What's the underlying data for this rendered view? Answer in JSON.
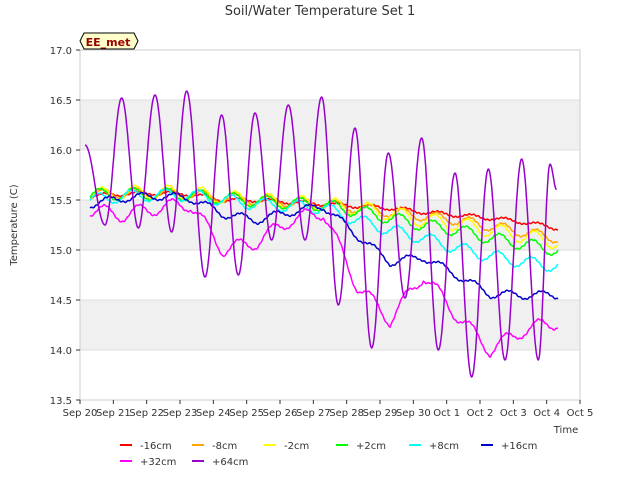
{
  "chart_data": {
    "type": "line",
    "title": "Soil/Water Temperature Set 1",
    "xlabel": "Time",
    "ylabel": "Temperature (C)",
    "badge": "EE_met",
    "xlim": [
      0,
      15
    ],
    "ylim": [
      13.5,
      17.0
    ],
    "x_ticks": [
      {
        "x": 0,
        "label": "Sep 20"
      },
      {
        "x": 1,
        "label": "Sep 21"
      },
      {
        "x": 2,
        "label": "Sep 22"
      },
      {
        "x": 3,
        "label": "Sep 23"
      },
      {
        "x": 4,
        "label": "Sep 24"
      },
      {
        "x": 5,
        "label": "Sep 25"
      },
      {
        "x": 6,
        "label": "Sep 26"
      },
      {
        "x": 7,
        "label": "Sep 27"
      },
      {
        "x": 8,
        "label": "Sep 28"
      },
      {
        "x": 9,
        "label": "Sep 29"
      },
      {
        "x": 10,
        "label": "Sep 30"
      },
      {
        "x": 11,
        "label": "Oct 1"
      },
      {
        "x": 12,
        "label": "Oct 2"
      },
      {
        "x": 13,
        "label": "Oct 3"
      },
      {
        "x": 14,
        "label": "Oct 4"
      },
      {
        "x": 15,
        "label": "Oct 5"
      }
    ],
    "y_ticks": [
      {
        "y": 13.5,
        "label": "13.5"
      },
      {
        "y": 14.0,
        "label": "14.0"
      },
      {
        "y": 14.5,
        "label": "14.5"
      },
      {
        "y": 15.0,
        "label": "15.0"
      },
      {
        "y": 15.5,
        "label": "15.5"
      },
      {
        "y": 16.0,
        "label": "16.0"
      },
      {
        "y": 16.5,
        "label": "16.5"
      },
      {
        "y": 17.0,
        "label": "17.0"
      }
    ],
    "grid": true,
    "legend_position": "bottom",
    "series": [
      {
        "name": "-16cm",
        "color": "#ff0000",
        "points": [
          [
            0.3,
            15.54
          ],
          [
            1.3,
            15.56
          ],
          [
            2.3,
            15.57
          ],
          [
            3.3,
            15.56
          ],
          [
            4.3,
            15.5
          ],
          [
            5.3,
            15.5
          ],
          [
            6.3,
            15.48
          ],
          [
            7.3,
            15.46
          ],
          [
            8.3,
            15.44
          ],
          [
            9.3,
            15.42
          ],
          [
            10.3,
            15.38
          ],
          [
            11.3,
            15.35
          ],
          [
            12.3,
            15.32
          ],
          [
            13.3,
            15.28
          ],
          [
            14.3,
            15.22
          ]
        ],
        "amp": 0.02,
        "phase": 0.5
      },
      {
        "name": "-8cm",
        "color": "#ffa500",
        "points": [
          [
            0.3,
            15.55
          ],
          [
            1.3,
            15.57
          ],
          [
            2.3,
            15.57
          ],
          [
            3.3,
            15.56
          ],
          [
            4.3,
            15.52
          ],
          [
            5.3,
            15.5
          ],
          [
            6.3,
            15.48
          ],
          [
            7.3,
            15.46
          ],
          [
            8.3,
            15.42
          ],
          [
            9.3,
            15.38
          ],
          [
            10.3,
            15.34
          ],
          [
            11.3,
            15.3
          ],
          [
            12.3,
            15.24
          ],
          [
            13.3,
            15.18
          ],
          [
            14.3,
            15.12
          ]
        ],
        "amp": 0.05,
        "phase": 0.45
      },
      {
        "name": "-2cm",
        "color": "#ffff00",
        "points": [
          [
            0.3,
            15.55
          ],
          [
            1.3,
            15.57
          ],
          [
            2.3,
            15.58
          ],
          [
            3.3,
            15.57
          ],
          [
            4.3,
            15.53
          ],
          [
            5.3,
            15.5
          ],
          [
            6.3,
            15.48
          ],
          [
            7.3,
            15.46
          ],
          [
            8.3,
            15.42
          ],
          [
            9.3,
            15.37
          ],
          [
            10.3,
            15.3
          ],
          [
            11.3,
            15.26
          ],
          [
            12.3,
            15.2
          ],
          [
            13.3,
            15.14
          ],
          [
            14.3,
            15.08
          ]
        ],
        "amp": 0.07,
        "phase": 0.4
      },
      {
        "name": "+2cm",
        "color": "#00ff00",
        "points": [
          [
            0.3,
            15.55
          ],
          [
            1.3,
            15.56
          ],
          [
            2.3,
            15.56
          ],
          [
            3.3,
            15.55
          ],
          [
            4.3,
            15.52
          ],
          [
            5.3,
            15.49
          ],
          [
            6.3,
            15.47
          ],
          [
            7.3,
            15.45
          ],
          [
            8.3,
            15.39
          ],
          [
            9.3,
            15.32
          ],
          [
            10.3,
            15.25
          ],
          [
            11.3,
            15.2
          ],
          [
            12.3,
            15.12
          ],
          [
            13.3,
            15.06
          ],
          [
            14.3,
            15.0
          ]
        ],
        "amp": 0.06,
        "phase": 0.35
      },
      {
        "name": "+8cm",
        "color": "#00ffff",
        "points": [
          [
            0.3,
            15.5
          ],
          [
            1.3,
            15.54
          ],
          [
            2.3,
            15.55
          ],
          [
            3.3,
            15.55
          ],
          [
            4.3,
            15.5
          ],
          [
            5.3,
            15.46
          ],
          [
            6.3,
            15.44
          ],
          [
            7.3,
            15.42
          ],
          [
            8.3,
            15.3
          ],
          [
            9.3,
            15.2
          ],
          [
            10.3,
            15.12
          ],
          [
            11.3,
            15.02
          ],
          [
            12.3,
            14.94
          ],
          [
            13.3,
            14.88
          ],
          [
            14.3,
            14.84
          ]
        ],
        "amp": 0.06,
        "phase": 0.3
      },
      {
        "name": "+16cm",
        "color": "#0000cc",
        "points": [
          [
            0.3,
            15.46
          ],
          [
            1.3,
            15.52
          ],
          [
            2.3,
            15.54
          ],
          [
            3.3,
            15.52
          ],
          [
            4.3,
            15.36
          ],
          [
            5.3,
            15.3
          ],
          [
            6.3,
            15.38
          ],
          [
            7.3,
            15.44
          ],
          [
            8.3,
            15.15
          ],
          [
            9.3,
            14.88
          ],
          [
            10.3,
            14.93
          ],
          [
            11.3,
            14.75
          ],
          [
            12.3,
            14.56
          ],
          [
            13.3,
            14.55
          ],
          [
            14.3,
            14.55
          ]
        ],
        "amp": 0.04,
        "phase": 0.6
      },
      {
        "name": "+32cm",
        "color": "#ff00ff",
        "points": [
          [
            0.3,
            15.4
          ],
          [
            1.3,
            15.35
          ],
          [
            2.3,
            15.42
          ],
          [
            3.3,
            15.46
          ],
          [
            4.3,
            15.0
          ],
          [
            5.3,
            15.08
          ],
          [
            6.3,
            15.3
          ],
          [
            7.3,
            15.38
          ],
          [
            8.3,
            14.65
          ],
          [
            9.3,
            14.3
          ],
          [
            10.3,
            14.75
          ],
          [
            11.3,
            14.35
          ],
          [
            12.3,
            14.0
          ],
          [
            13.3,
            14.2
          ],
          [
            14.3,
            14.28
          ]
        ],
        "amp": 0.07,
        "phase": 0.5
      },
      {
        "name": "+64cm",
        "color": "#9900cc",
        "lows": [
          [
            0.15,
            16.05
          ],
          [
            0.75,
            15.25
          ],
          [
            1.75,
            15.22
          ],
          [
            2.75,
            15.18
          ],
          [
            3.75,
            14.73
          ],
          [
            4.75,
            14.75
          ],
          [
            5.75,
            15.1
          ],
          [
            6.75,
            15.1
          ],
          [
            7.75,
            14.45
          ],
          [
            8.75,
            14.02
          ],
          [
            9.75,
            14.52
          ],
          [
            10.75,
            14.0
          ],
          [
            11.75,
            13.73
          ],
          [
            12.75,
            13.9
          ],
          [
            13.75,
            13.9
          ],
          [
            14.3,
            15.6
          ]
        ],
        "highs": [
          [
            1.25,
            16.52
          ],
          [
            2.25,
            16.55
          ],
          [
            3.2,
            16.59
          ],
          [
            4.25,
            16.35
          ],
          [
            5.25,
            16.37
          ],
          [
            6.25,
            16.45
          ],
          [
            7.25,
            16.53
          ],
          [
            8.25,
            16.22
          ],
          [
            9.25,
            15.97
          ],
          [
            10.25,
            16.12
          ],
          [
            11.25,
            15.77
          ],
          [
            12.25,
            15.81
          ],
          [
            13.25,
            15.91
          ],
          [
            14.1,
            15.86
          ]
        ]
      }
    ]
  }
}
